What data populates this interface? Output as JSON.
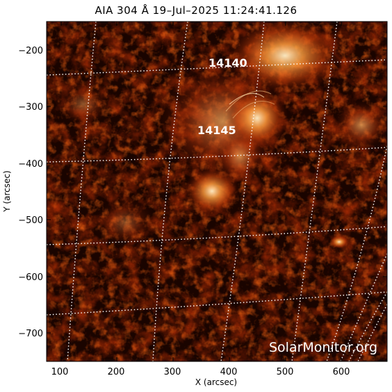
{
  "title": "AIA 304 Å 19–Jul–2025 11:24:41.126",
  "x_axis": {
    "label": "X (arcsec)",
    "ticks": [
      "100",
      "200",
      "300",
      "400",
      "500",
      "600"
    ],
    "range": [
      78,
      678
    ]
  },
  "y_axis": {
    "label": "Y (arcsec)",
    "ticks": [
      "−200",
      "−300",
      "−400",
      "−500",
      "−600",
      "−700"
    ],
    "range": [
      -750,
      -150
    ]
  },
  "regions": [
    {
      "id": "region-14140",
      "label": "14140"
    },
    {
      "id": "region-14145",
      "label": "14145"
    }
  ],
  "watermark": "SolarMonitor.org",
  "colors": {
    "background": "#ffffff",
    "image_dark": "#1a0400",
    "image_mid": "#8a1c00",
    "image_bright": "#ffd9a0",
    "grid": "#ffffff"
  }
}
